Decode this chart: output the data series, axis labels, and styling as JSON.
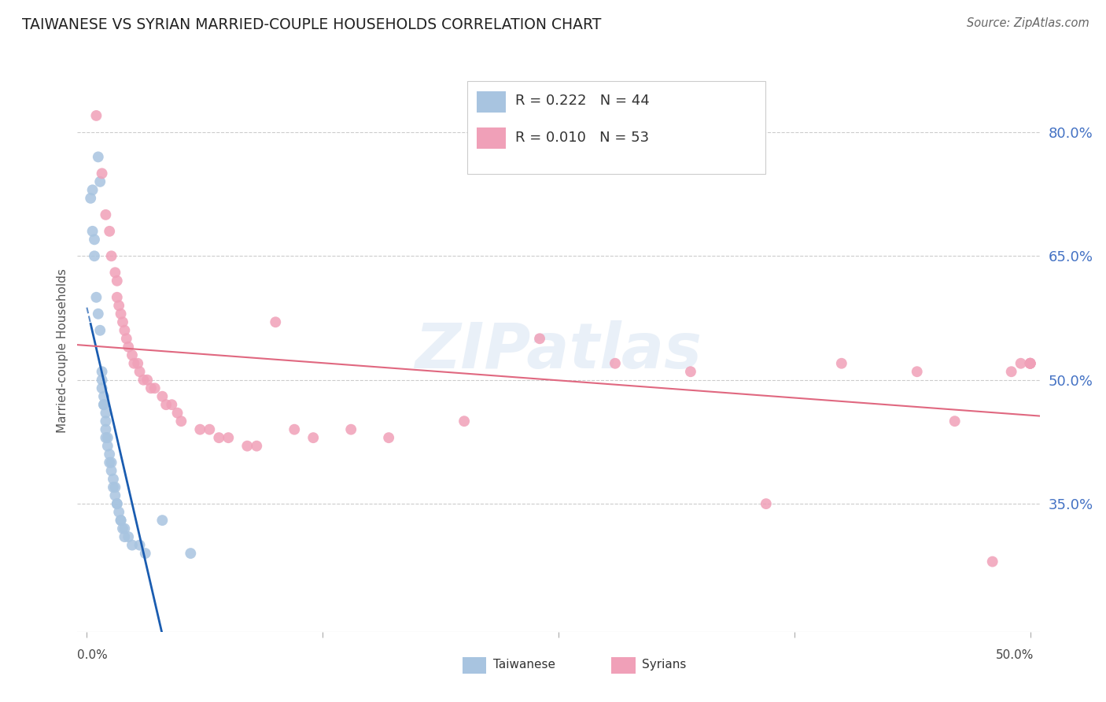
{
  "title": "TAIWANESE VS SYRIAN MARRIED-COUPLE HOUSEHOLDS CORRELATION CHART",
  "source": "Source: ZipAtlas.com",
  "ylabel": "Married-couple Households",
  "ytick_labels": [
    "80.0%",
    "65.0%",
    "50.0%",
    "35.0%"
  ],
  "ytick_values": [
    0.8,
    0.65,
    0.5,
    0.35
  ],
  "ymin": 0.195,
  "ymax": 0.875,
  "xmin": -0.005,
  "xmax": 0.505,
  "legend_blue_r": "R = 0.222",
  "legend_blue_n": "N = 44",
  "legend_pink_r": "R = 0.010",
  "legend_pink_n": "N = 53",
  "taiwanese_color": "#a8c4e0",
  "syrian_color": "#f0a0b8",
  "trendline_blue_color": "#1a5cb0",
  "trendline_pink_color": "#e06880",
  "watermark": "ZIPatlas",
  "taiwanese_x": [
    0.002,
    0.003,
    0.003,
    0.004,
    0.004,
    0.005,
    0.006,
    0.006,
    0.007,
    0.007,
    0.008,
    0.008,
    0.008,
    0.009,
    0.009,
    0.009,
    0.01,
    0.01,
    0.01,
    0.01,
    0.011,
    0.011,
    0.012,
    0.012,
    0.013,
    0.013,
    0.014,
    0.014,
    0.015,
    0.015,
    0.016,
    0.016,
    0.017,
    0.018,
    0.018,
    0.019,
    0.02,
    0.02,
    0.022,
    0.024,
    0.028,
    0.031,
    0.04,
    0.055
  ],
  "taiwanese_y": [
    0.72,
    0.73,
    0.68,
    0.67,
    0.65,
    0.6,
    0.58,
    0.77,
    0.74,
    0.56,
    0.51,
    0.5,
    0.49,
    0.48,
    0.47,
    0.47,
    0.46,
    0.45,
    0.44,
    0.43,
    0.43,
    0.42,
    0.41,
    0.4,
    0.4,
    0.39,
    0.38,
    0.37,
    0.37,
    0.36,
    0.35,
    0.35,
    0.34,
    0.33,
    0.33,
    0.32,
    0.32,
    0.31,
    0.31,
    0.3,
    0.3,
    0.29,
    0.33,
    0.29
  ],
  "syrian_x": [
    0.005,
    0.008,
    0.01,
    0.012,
    0.013,
    0.015,
    0.016,
    0.016,
    0.017,
    0.018,
    0.019,
    0.02,
    0.021,
    0.022,
    0.024,
    0.025,
    0.027,
    0.028,
    0.03,
    0.032,
    0.034,
    0.036,
    0.04,
    0.042,
    0.045,
    0.048,
    0.05,
    0.06,
    0.065,
    0.07,
    0.075,
    0.085,
    0.09,
    0.1,
    0.11,
    0.12,
    0.14,
    0.16,
    0.2,
    0.24,
    0.28,
    0.32,
    0.36,
    0.4,
    0.44,
    0.46,
    0.48,
    0.49,
    0.495,
    0.5,
    0.5,
    0.5,
    0.5
  ],
  "syrian_y": [
    0.82,
    0.75,
    0.7,
    0.68,
    0.65,
    0.63,
    0.62,
    0.6,
    0.59,
    0.58,
    0.57,
    0.56,
    0.55,
    0.54,
    0.53,
    0.52,
    0.52,
    0.51,
    0.5,
    0.5,
    0.49,
    0.49,
    0.48,
    0.47,
    0.47,
    0.46,
    0.45,
    0.44,
    0.44,
    0.43,
    0.43,
    0.42,
    0.42,
    0.57,
    0.44,
    0.43,
    0.44,
    0.43,
    0.45,
    0.55,
    0.52,
    0.51,
    0.35,
    0.52,
    0.51,
    0.45,
    0.28,
    0.51,
    0.52,
    0.52,
    0.52,
    0.52,
    0.52
  ]
}
